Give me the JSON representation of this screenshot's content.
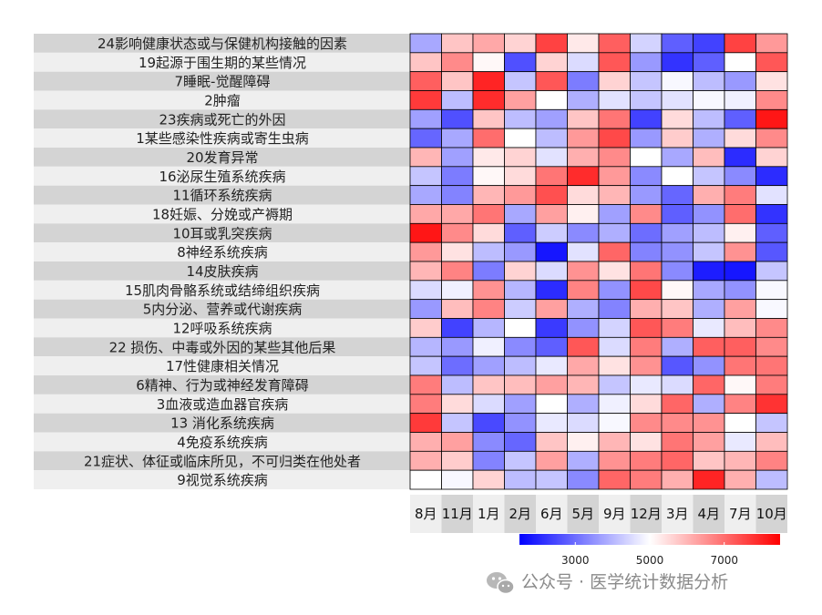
{
  "chart_data": {
    "type": "heatmap",
    "title": "",
    "columns": [
      "8月",
      "11月",
      "1月",
      "2月",
      "6月",
      "5月",
      "9月",
      "12月",
      "3月",
      "4月",
      "7月",
      "10月"
    ],
    "rows": [
      "24影响健康状态或与保健机构接触的因素",
      "19起源于围生期的某些情况",
      "7睡眠-觉醒障碍",
      "2肿瘤",
      "23疾病或死亡的外因",
      "1某些感染性疾病或寄生虫病",
      "20发育异常",
      "16泌尿生殖系统疾病",
      "11循环系统疾病",
      "18妊娠、分娩或产褥期",
      "10耳或乳突疾病",
      "8神经系统疾病",
      "14皮肤疾病",
      "15肌肉骨骼系统或结缔组织疾病",
      "5内分泌、营养或代谢疾病",
      "12呼吸系统疾病",
      "22 损伤、中毒或外因的某些其他后果",
      "17性健康相关情况",
      "6精神、行为或神经发育障碍",
      "3血液或造血器官疾病",
      "13 消化系统疾病",
      "4免疫系统疾病",
      "21症状、体征或临床所见，不可归类在他处者",
      "9视觉系统疾病"
    ],
    "values": [
      [
        3800,
        5800,
        6200,
        5600,
        7600,
        5300,
        7200,
        4400,
        2800,
        2400,
        7600,
        6400
      ],
      [
        5800,
        6600,
        5100,
        2600,
        5600,
        4500,
        7300,
        3600,
        2200,
        2800,
        5000,
        7300
      ],
      [
        7200,
        5800,
        8000,
        4200,
        7300,
        3200,
        5600,
        4200,
        4900,
        4100,
        3600,
        5400
      ],
      [
        7700,
        4100,
        7900,
        6300,
        5000,
        3900,
        4600,
        4200,
        4600,
        4900,
        4800,
        6600
      ],
      [
        3700,
        2600,
        5800,
        4100,
        3700,
        5800,
        6900,
        2400,
        5500,
        4100,
        2800,
        8200
      ],
      [
        2900,
        3800,
        7000,
        5000,
        4100,
        6400,
        7500,
        3600,
        5700,
        3900,
        5500,
        6600
      ],
      [
        6000,
        3700,
        5300,
        5600,
        4600,
        6100,
        6600,
        5000,
        3800,
        5900,
        2100,
        5600
      ],
      [
        4200,
        3200,
        5100,
        5500,
        6900,
        7900,
        6400,
        3400,
        5000,
        4200,
        3400,
        2100
      ],
      [
        3800,
        3300,
        6000,
        6400,
        7400,
        5500,
        6000,
        3600,
        2900,
        6100,
        6800,
        4600
      ],
      [
        6200,
        6200,
        6900,
        3800,
        6300,
        5200,
        3700,
        6600,
        2800,
        3500,
        7000,
        2200
      ],
      [
        8200,
        6600,
        5500,
        2800,
        4300,
        3400,
        3900,
        3000,
        3700,
        4100,
        5200,
        2800
      ],
      [
        6400,
        5400,
        4100,
        3600,
        1800,
        4600,
        7100,
        3300,
        3500,
        4200,
        6500,
        2700
      ],
      [
        6000,
        6700,
        3200,
        5600,
        4500,
        6500,
        5400,
        6900,
        3400,
        1900,
        1800,
        4200
      ],
      [
        4500,
        4800,
        6500,
        4000,
        2100,
        6700,
        3500,
        7500,
        5100,
        3800,
        3500,
        4900
      ],
      [
        3600,
        5900,
        6700,
        4300,
        6300,
        3900,
        3300,
        6100,
        5800,
        3900,
        6300,
        4900
      ],
      [
        5700,
        2400,
        4000,
        5000,
        2300,
        3500,
        4400,
        7300,
        6800,
        4700,
        5900,
        6600
      ],
      [
        4000,
        3600,
        4800,
        3400,
        2800,
        7300,
        4500,
        6800,
        3900,
        7200,
        7200,
        6600
      ],
      [
        4200,
        3000,
        3700,
        4100,
        4700,
        6200,
        5400,
        6500,
        2700,
        3500,
        6900,
        6900
      ],
      [
        6800,
        4100,
        5800,
        5900,
        6300,
        6000,
        4200,
        4700,
        4500,
        7100,
        5100,
        6800
      ],
      [
        6800,
        5500,
        4500,
        3700,
        5000,
        3900,
        4800,
        5500,
        7100,
        3900,
        6700,
        7800
      ],
      [
        7700,
        4200,
        2500,
        3500,
        4700,
        4500,
        4900,
        6600,
        6600,
        6500,
        5000,
        4200
      ],
      [
        6100,
        6300,
        3400,
        2900,
        5800,
        5200,
        6000,
        5400,
        6900,
        6300,
        4700,
        5900
      ],
      [
        6100,
        5700,
        3300,
        4200,
        6300,
        3900,
        6500,
        6800,
        7100,
        5800,
        6000,
        6700
      ],
      [
        5000,
        4900,
        5600,
        4100,
        4200,
        3400,
        7100,
        6800,
        6100,
        8000,
        6100,
        4100
      ]
    ],
    "colorbar": {
      "min": 1500,
      "mid": 5000,
      "max": 8500,
      "ticks": [
        3000,
        5000,
        7000
      ],
      "colors": {
        "low": "#0000ff",
        "mid": "#ffffff",
        "high": "#ff0000"
      }
    },
    "xlabel": "",
    "ylabel": ""
  },
  "watermark": {
    "text": "公众号 · 医学统计数据分析",
    "icon": "wechat-icon"
  },
  "style": {
    "row_band_dark": "#d4d4d4",
    "row_band_light": "#efefef",
    "col_band_dark": "#d4d4d4",
    "col_band_light": "#efefef",
    "cell_border": "#000000"
  }
}
